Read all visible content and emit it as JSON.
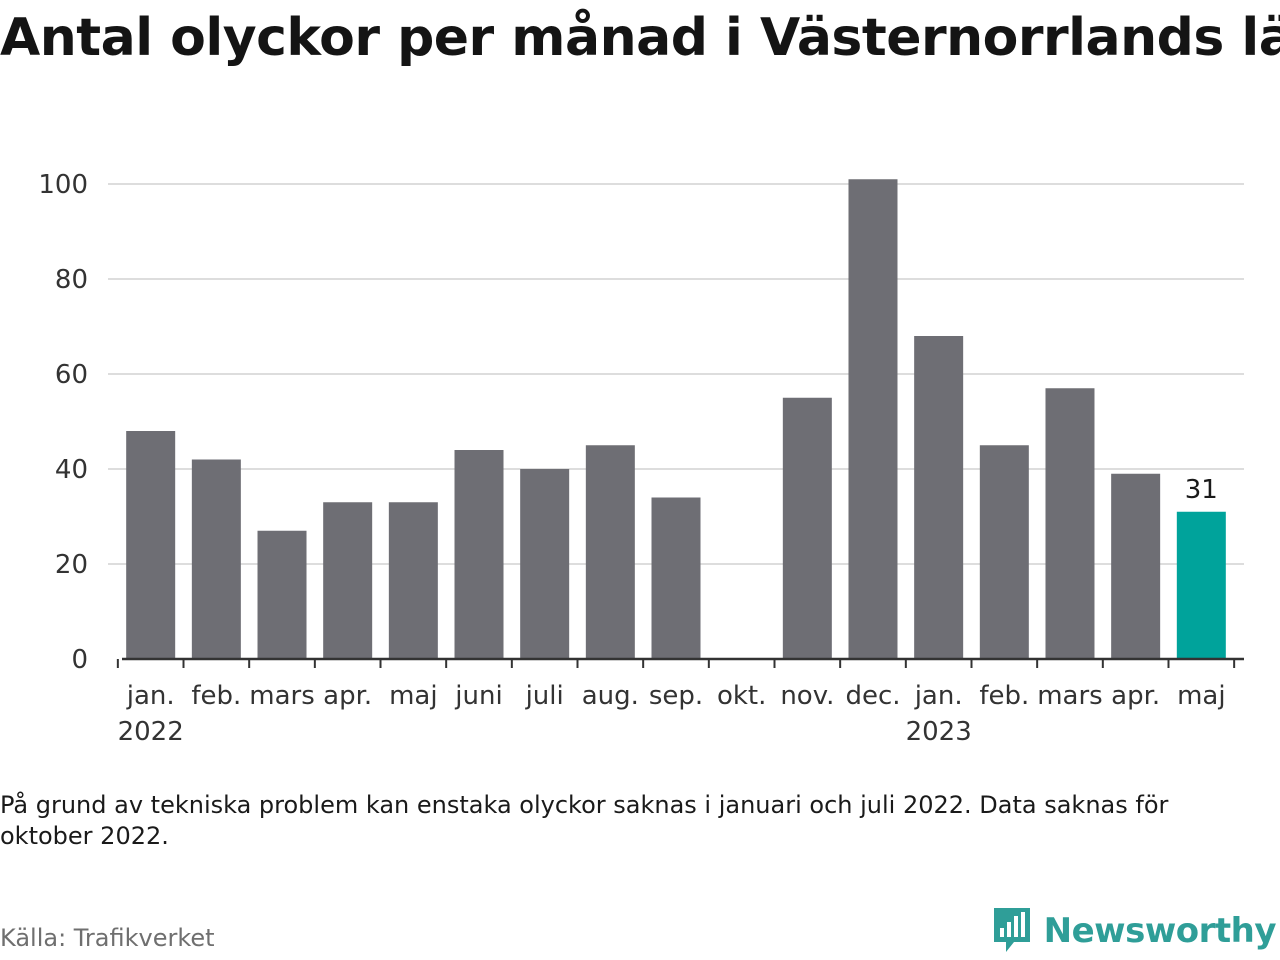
{
  "title": "Antal olyckor per månad i Västernorrlands län",
  "note": "På grund av tekniska problem kan enstaka olyckor saknas i januari och juli 2022. Data saknas för oktober 2022.",
  "source": "Källa: Trafikverket",
  "brand": {
    "name": "Newsworthy",
    "color": "#2f9e98"
  },
  "chart_data": {
    "type": "bar",
    "categories": [
      "jan.",
      "feb.",
      "mars",
      "apr.",
      "maj",
      "juni",
      "juli",
      "aug.",
      "sep.",
      "okt.",
      "nov.",
      "dec.",
      "jan.",
      "feb.",
      "mars",
      "apr.",
      "maj"
    ],
    "year_labels": [
      {
        "label": "2022",
        "index": 0
      },
      {
        "label": "2023",
        "index": 12
      }
    ],
    "values": [
      48,
      42,
      27,
      33,
      33,
      44,
      40,
      45,
      34,
      null,
      55,
      101,
      68,
      45,
      57,
      39,
      31
    ],
    "ylim": [
      0,
      100
    ],
    "yticks": [
      0,
      20,
      40,
      60,
      80,
      100
    ],
    "grid": true,
    "highlight_index": 16,
    "highlight_label": "31",
    "colors": {
      "bar": "#6e6e74",
      "highlight": "#00a39b",
      "grid": "#dddddd",
      "axis": "#333333"
    }
  }
}
